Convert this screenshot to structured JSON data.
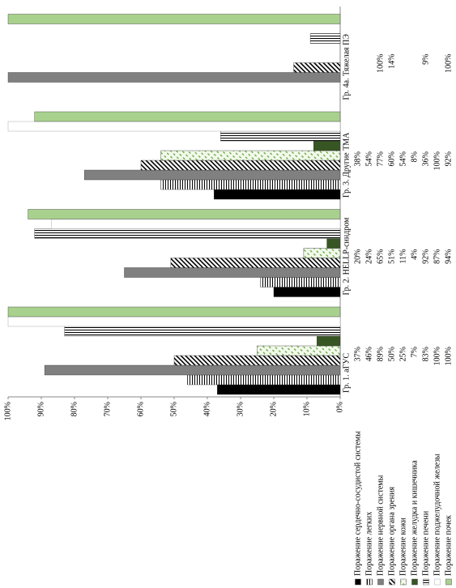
{
  "chart_data": {
    "type": "bar",
    "categories": [
      "Гр. 1. аГУС",
      "Гр. 2. HELLP-синдром",
      "Гр. 3. Другие ТМА",
      "Гр. 4а. Тяжелая ПЭ"
    ],
    "series": [
      {
        "name": "Поражение сердечно-сосудистой системы",
        "color": "#000000",
        "pattern": "solid",
        "values": [
          37,
          20,
          38,
          null
        ],
        "value_labels": [
          "37%",
          "20%",
          "38%",
          null
        ]
      },
      {
        "name": "Поражение легких",
        "color": "#000000",
        "pattern": "hlines",
        "values": [
          46,
          24,
          54,
          null
        ],
        "value_labels": [
          "46%",
          "24%",
          "54%",
          null
        ]
      },
      {
        "name": "Поражение нервной системы",
        "color": "#808080",
        "pattern": "solid",
        "values": [
          89,
          65,
          77,
          100
        ],
        "value_labels": [
          "89%",
          "65%",
          "77%",
          "100%"
        ]
      },
      {
        "name": "Поражение органа зрения",
        "color": "#000000",
        "pattern": "diag",
        "values": [
          50,
          51,
          60,
          14
        ],
        "value_labels": [
          "50%",
          "51%",
          "60%",
          "14%"
        ]
      },
      {
        "name": "Поражение кожи",
        "color": "#70ad47",
        "pattern": "diag-dash",
        "values": [
          25,
          11,
          54,
          null
        ],
        "value_labels": [
          "25%",
          "11%",
          "54%",
          null
        ]
      },
      {
        "name": "Поражение желудка и кишечника",
        "color": "#375623",
        "pattern": "solid",
        "values": [
          7,
          4,
          8,
          null
        ],
        "value_labels": [
          "7%",
          "4%",
          "8%",
          null
        ]
      },
      {
        "name": "Поражение печени",
        "color": "#000000",
        "pattern": "vlines",
        "values": [
          83,
          92,
          36,
          9
        ],
        "value_labels": [
          "83%",
          "92%",
          "36%",
          "9%"
        ]
      },
      {
        "name": "Поражение поджелудочной железы",
        "color": "#ffffff",
        "pattern": "solid",
        "values": [
          100,
          87,
          100,
          null
        ],
        "value_labels": [
          "100%",
          "87%",
          "100%",
          null
        ]
      },
      {
        "name": "Поражение почек",
        "color": "#a9d18e",
        "pattern": "solid",
        "values": [
          100,
          94,
          92,
          100
        ],
        "value_labels": [
          "100%",
          "94%",
          "92%",
          "100%"
        ]
      }
    ],
    "ylim": [
      0,
      100
    ],
    "yticks": [
      {
        "value": 0,
        "label": "0%"
      },
      {
        "value": 10,
        "label": "10%"
      },
      {
        "value": 20,
        "label": "20%"
      },
      {
        "value": 30,
        "label": "30%"
      },
      {
        "value": 40,
        "label": "40%"
      },
      {
        "value": 50,
        "label": "50%"
      },
      {
        "value": 60,
        "label": "60%"
      },
      {
        "value": 70,
        "label": "70%"
      },
      {
        "value": 80,
        "label": "80%"
      },
      {
        "value": 90,
        "label": "90%"
      },
      {
        "value": 100,
        "label": "100%"
      }
    ]
  }
}
